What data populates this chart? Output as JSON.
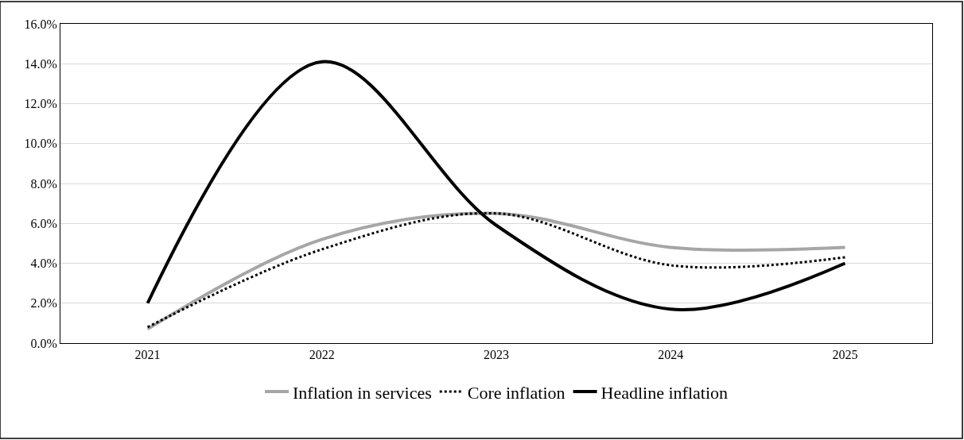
{
  "chart_data": {
    "type": "line",
    "categories": [
      "2021",
      "2022",
      "2023",
      "2024",
      "2025"
    ],
    "series": [
      {
        "name": "Inflation in services",
        "color": "#a6a6a6",
        "values": [
          0.7,
          5.2,
          6.5,
          4.8,
          4.8
        ],
        "line_style": "solid"
      },
      {
        "name": "Core inflation",
        "color": "#000000",
        "values": [
          0.8,
          4.7,
          6.5,
          3.9,
          4.3
        ],
        "line_style": "dotted"
      },
      {
        "name": "Headline inflation",
        "color": "#000000",
        "values": [
          2.0,
          14.1,
          5.9,
          1.7,
          4.0
        ],
        "line_style": "solid"
      }
    ],
    "ylim": [
      0,
      16
    ],
    "yticks": [
      {
        "value": 0,
        "label": "0.0%"
      },
      {
        "value": 2,
        "label": "2.0%"
      },
      {
        "value": 4,
        "label": "4.0%"
      },
      {
        "value": 6,
        "label": "6.0%"
      },
      {
        "value": 8,
        "label": "8.0%"
      },
      {
        "value": 10,
        "label": "10.0%"
      },
      {
        "value": 12,
        "label": "12.0%"
      },
      {
        "value": 14,
        "label": "14.0%"
      },
      {
        "value": 16,
        "label": "16.0%"
      }
    ],
    "grid": "y",
    "legend": "bottom",
    "marker": "none"
  }
}
